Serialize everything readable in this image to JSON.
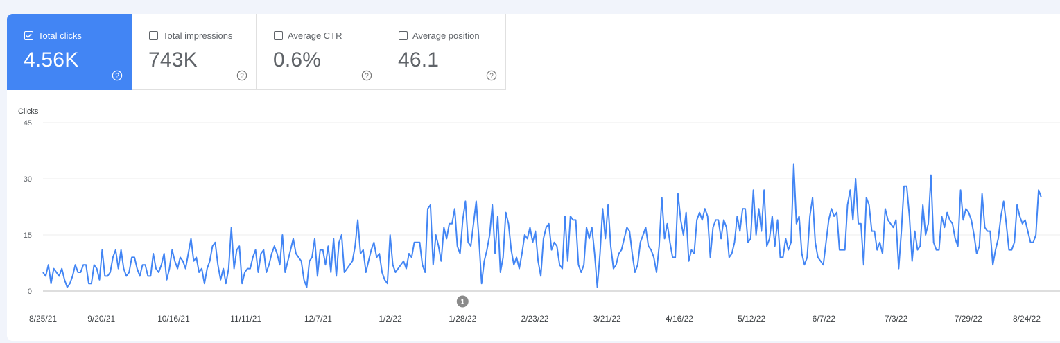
{
  "metrics": [
    {
      "label": "Total clicks",
      "value": "4.56K",
      "checked": true
    },
    {
      "label": "Total impressions",
      "value": "743K",
      "checked": false
    },
    {
      "label": "Average CTR",
      "value": "0.6%",
      "checked": false
    },
    {
      "label": "Average position",
      "value": "46.1",
      "checked": false
    }
  ],
  "annotation": {
    "label": "1",
    "date_label": "1/28/22"
  },
  "chart_data": {
    "type": "line",
    "ylabel": "Clicks",
    "ylim": [
      0,
      45
    ],
    "yticks": [
      0,
      15,
      30,
      45
    ],
    "xticks": [
      "8/25/21",
      "9/20/21",
      "10/16/21",
      "11/11/21",
      "12/7/21",
      "1/2/22",
      "1/28/22",
      "2/23/22",
      "3/21/22",
      "4/16/22",
      "5/12/22",
      "6/7/22",
      "7/3/22",
      "7/29/22",
      "8/24/22"
    ],
    "x_start": "8/25/21",
    "x_end": "8/24/22",
    "grid": true,
    "series": [
      {
        "color": "#4285f4",
        "values": [
          5,
          4,
          7,
          2,
          6,
          5,
          4,
          6,
          3,
          1,
          2,
          4,
          7,
          5,
          5,
          7,
          7,
          2,
          2,
          7,
          6,
          3,
          11,
          4,
          4,
          5,
          9,
          11,
          6,
          11,
          6,
          4,
          5,
          9,
          9,
          6,
          4,
          7,
          7,
          4,
          4,
          10,
          6,
          5,
          7,
          10,
          3,
          6,
          11,
          8,
          6,
          9,
          8,
          6,
          10,
          14,
          8,
          9,
          5,
          6,
          2,
          6,
          8,
          12,
          13,
          7,
          3,
          6,
          2,
          6,
          17,
          6,
          11,
          12,
          2,
          5,
          6,
          6,
          9,
          11,
          5,
          10,
          11,
          5,
          7,
          10,
          12,
          10,
          7,
          15,
          5,
          8,
          11,
          14,
          10,
          9,
          8,
          3,
          1,
          8,
          9,
          14,
          4,
          11,
          11,
          7,
          12,
          5,
          14,
          4,
          13,
          15,
          5,
          6,
          7,
          8,
          12,
          19,
          10,
          11,
          5,
          8,
          11,
          13,
          9,
          10,
          5,
          3,
          2,
          15,
          7,
          5,
          6,
          7,
          8,
          6,
          10,
          9,
          13,
          13,
          13,
          7,
          5,
          22,
          23,
          7,
          15,
          12,
          8,
          17,
          14,
          18,
          18,
          22,
          12,
          10,
          19,
          24,
          13,
          12,
          18,
          24,
          14,
          2,
          8,
          11,
          15,
          23,
          10,
          20,
          5,
          9,
          21,
          18,
          11,
          7,
          9,
          6,
          10,
          15,
          14,
          17,
          13,
          16,
          8,
          4,
          14,
          17,
          18,
          11,
          13,
          12,
          7,
          6,
          20,
          8,
          20,
          19,
          19,
          7,
          5,
          7,
          17,
          14,
          17,
          10,
          1,
          10,
          22,
          14,
          23,
          12,
          6,
          7,
          10,
          11,
          14,
          17,
          16,
          10,
          5,
          7,
          13,
          15,
          17,
          12,
          11,
          9,
          5,
          12,
          25,
          14,
          18,
          13,
          9,
          9,
          26,
          19,
          15,
          21,
          8,
          11,
          10,
          19,
          21,
          19,
          22,
          20,
          9,
          17,
          19,
          19,
          14,
          19,
          17,
          9,
          10,
          13,
          20,
          16,
          22,
          22,
          13,
          14,
          27,
          15,
          22,
          16,
          27,
          12,
          14,
          20,
          12,
          19,
          9,
          9,
          14,
          11,
          13,
          34,
          18,
          20,
          10,
          7,
          9,
          20,
          25,
          13,
          9,
          8,
          7,
          13,
          19,
          22,
          20,
          21,
          11,
          11,
          11,
          23,
          27,
          19,
          30,
          18,
          18,
          7,
          25,
          23,
          16,
          16,
          11,
          13,
          10,
          22,
          19,
          18,
          17,
          19,
          6,
          16,
          28,
          28,
          20,
          8,
          16,
          11,
          12,
          23,
          15,
          18,
          31,
          13,
          11,
          11,
          20,
          17,
          21,
          19,
          18,
          14,
          12,
          27,
          19,
          22,
          21,
          19,
          15,
          10,
          12,
          26,
          17,
          16,
          16,
          7,
          11,
          14,
          20,
          24,
          18,
          11,
          11,
          13,
          23,
          20,
          18,
          19,
          16,
          13,
          13,
          15,
          27,
          25
        ]
      }
    ]
  }
}
